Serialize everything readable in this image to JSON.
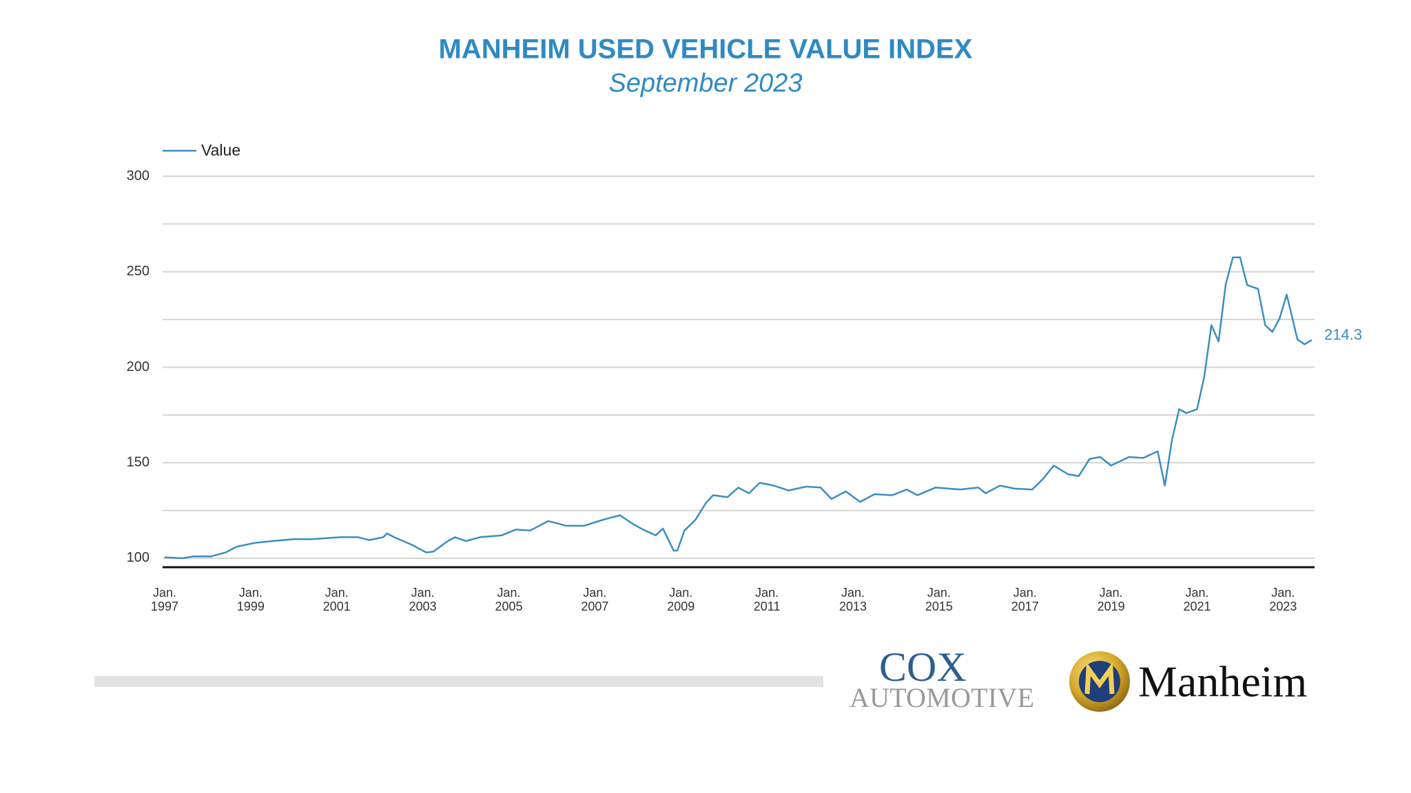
{
  "chart_data": {
    "type": "line",
    "title": "MANHEIM USED VEHICLE VALUE INDEX",
    "subtitle": "September 2023",
    "x": [
      "1997-01",
      "1997-06",
      "1997-09",
      "1998-02",
      "1998-06",
      "1998-09",
      "1999-02",
      "1999-07",
      "2000-01",
      "2000-06",
      "2001-02",
      "2001-07",
      "2001-10",
      "2002-02",
      "2002-03",
      "2002-05",
      "2002-10",
      "2003-02",
      "2003-04",
      "2003-08",
      "2003-10",
      "2004-01",
      "2004-05",
      "2004-11",
      "2005-03",
      "2005-07",
      "2005-12",
      "2006-05",
      "2006-10",
      "2007-03",
      "2007-08",
      "2007-12",
      "2008-03",
      "2008-06",
      "2008-08",
      "2008-11",
      "2008-12",
      "2009-02",
      "2009-05",
      "2009-08",
      "2009-10",
      "2010-02",
      "2010-05",
      "2010-08",
      "2010-11",
      "2011-03",
      "2011-07",
      "2011-12",
      "2012-04",
      "2012-07",
      "2012-11",
      "2013-03",
      "2013-07",
      "2013-12",
      "2014-04",
      "2014-07",
      "2014-12",
      "2015-07",
      "2015-12",
      "2016-02",
      "2016-06",
      "2016-10",
      "2017-03",
      "2017-06",
      "2017-09",
      "2018-01",
      "2018-04",
      "2018-07",
      "2018-10",
      "2019-01",
      "2019-06",
      "2019-10",
      "2020-02",
      "2020-04",
      "2020-06",
      "2020-08",
      "2020-10",
      "2021-01",
      "2021-03",
      "2021-05",
      "2021-07",
      "2021-09",
      "2021-11",
      "2022-01",
      "2022-03",
      "2022-06",
      "2022-08",
      "2022-10",
      "2022-12",
      "2023-02",
      "2023-05",
      "2023-07",
      "2023-09"
    ],
    "series": [
      {
        "name": "Value",
        "color": "#3a8ebf",
        "values": [
          100.5,
          100,
          101,
          101,
          103,
          106,
          108,
          109,
          110,
          110,
          111,
          111,
          109.5,
          111,
          113,
          111,
          107,
          103,
          103.5,
          109,
          111,
          109,
          111,
          112,
          115,
          114.5,
          119.5,
          117,
          117,
          120,
          122.5,
          117.5,
          114.5,
          112,
          115.5,
          104,
          104,
          114.5,
          120,
          129,
          133,
          132,
          137,
          134,
          139.5,
          138,
          135.5,
          137.5,
          137,
          131,
          135,
          129.5,
          133.5,
          133,
          136,
          133,
          137,
          136,
          137,
          134,
          138,
          136.5,
          136,
          141.5,
          148.5,
          144,
          143,
          152,
          153,
          148.5,
          153,
          152.5,
          156,
          138,
          162,
          178,
          176,
          178,
          195,
          222,
          213.5,
          243.5,
          257.5,
          257.5,
          243,
          241,
          222,
          218.5,
          225.5,
          238,
          214.5,
          212,
          214.3
        ]
      }
    ],
    "xlim": [
      "1997-01",
      "2023-09"
    ],
    "xticks": [
      {
        "value": "1997-01",
        "label": "Jan. 1997"
      },
      {
        "value": "1999-01",
        "label": "Jan. 1999"
      },
      {
        "value": "2001-01",
        "label": "Jan. 2001"
      },
      {
        "value": "2003-01",
        "label": "Jan. 2003"
      },
      {
        "value": "2005-01",
        "label": "Jan. 2005"
      },
      {
        "value": "2007-01",
        "label": "Jan. 2007"
      },
      {
        "value": "2009-01",
        "label": "Jan. 2009"
      },
      {
        "value": "2011-01",
        "label": "Jan. 2011"
      },
      {
        "value": "2013-01",
        "label": "Jan. 2013"
      },
      {
        "value": "2015-01",
        "label": "Jan. 2015"
      },
      {
        "value": "2017-01",
        "label": "Jan. 2017"
      },
      {
        "value": "2019-01",
        "label": "Jan. 2019"
      },
      {
        "value": "2021-01",
        "label": "Jan. 2021"
      },
      {
        "value": "2023-01",
        "label": "Jan. 2023"
      }
    ],
    "ylim": [
      95.3,
      300
    ],
    "yticks": [
      100,
      150,
      200,
      250,
      300
    ],
    "ygrid": [
      100,
      125,
      150,
      175,
      200,
      225,
      250,
      275,
      300
    ],
    "legend": "top-left",
    "label_last": true,
    "logos": {
      "cox": "COX",
      "automotive": "AUTOMOTIVE",
      "manheim": "Manheim"
    }
  }
}
